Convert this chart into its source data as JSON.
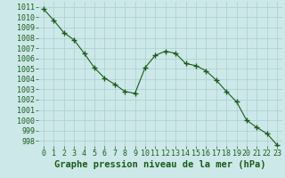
{
  "x": [
    0,
    1,
    2,
    3,
    4,
    5,
    6,
    7,
    8,
    9,
    10,
    11,
    12,
    13,
    14,
    15,
    16,
    17,
    18,
    19,
    20,
    21,
    22,
    23
  ],
  "y": [
    1010.8,
    1009.7,
    1008.5,
    1007.8,
    1006.5,
    1005.1,
    1004.1,
    1003.5,
    1002.8,
    1002.6,
    1005.1,
    1006.3,
    1006.7,
    1006.5,
    1005.5,
    1005.3,
    1004.8,
    1003.9,
    1002.8,
    1001.8,
    1000.0,
    999.3,
    998.7,
    997.6
  ],
  "line_color": "#1a5c1a",
  "marker": "+",
  "marker_size": 4,
  "marker_linewidth": 1.0,
  "line_width": 0.8,
  "bg_color": "#cce8e8",
  "grid_color": "#aacfcf",
  "xlabel": "Graphe pression niveau de la mer (hPa)",
  "xlabel_fontsize": 7.5,
  "ylabel_ticks": [
    998,
    999,
    1000,
    1001,
    1002,
    1003,
    1004,
    1005,
    1006,
    1007,
    1008,
    1009,
    1010,
    1011
  ],
  "ylim": [
    997.5,
    1011.5
  ],
  "xlim": [
    -0.5,
    23.5
  ],
  "tick_label_color": "#1a5c1a",
  "tick_label_fontsize": 6.0,
  "xlabel_bold": true
}
